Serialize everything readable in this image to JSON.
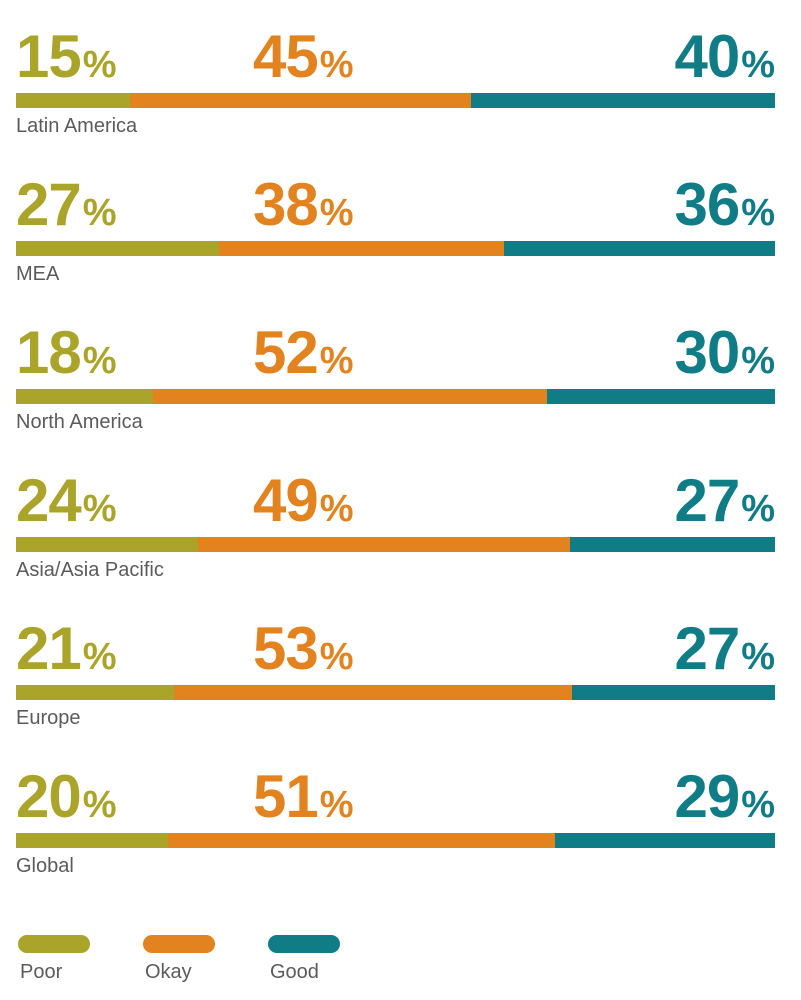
{
  "chart_data": {
    "type": "bar",
    "stacked": true,
    "orientation": "horizontal",
    "categories": [
      "Latin America",
      "MEA",
      "North America",
      "Asia/Asia Pacific",
      "Europe",
      "Global"
    ],
    "series": [
      {
        "name": "Poor",
        "color": "#aaa52a",
        "values": [
          15,
          27,
          18,
          24,
          21,
          20
        ]
      },
      {
        "name": "Okay",
        "color": "#e2831f",
        "values": [
          45,
          38,
          52,
          49,
          53,
          51
        ]
      },
      {
        "name": "Good",
        "color": "#0f7c86",
        "values": [
          40,
          36,
          30,
          27,
          27,
          29
        ]
      }
    ],
    "value_suffix": "%",
    "legend_position": "bottom-left"
  },
  "legend": {
    "items": [
      {
        "label": "Poor",
        "color": "#aaa52a"
      },
      {
        "label": "Okay",
        "color": "#e2831f"
      },
      {
        "label": "Good",
        "color": "#0f7c86"
      }
    ]
  }
}
